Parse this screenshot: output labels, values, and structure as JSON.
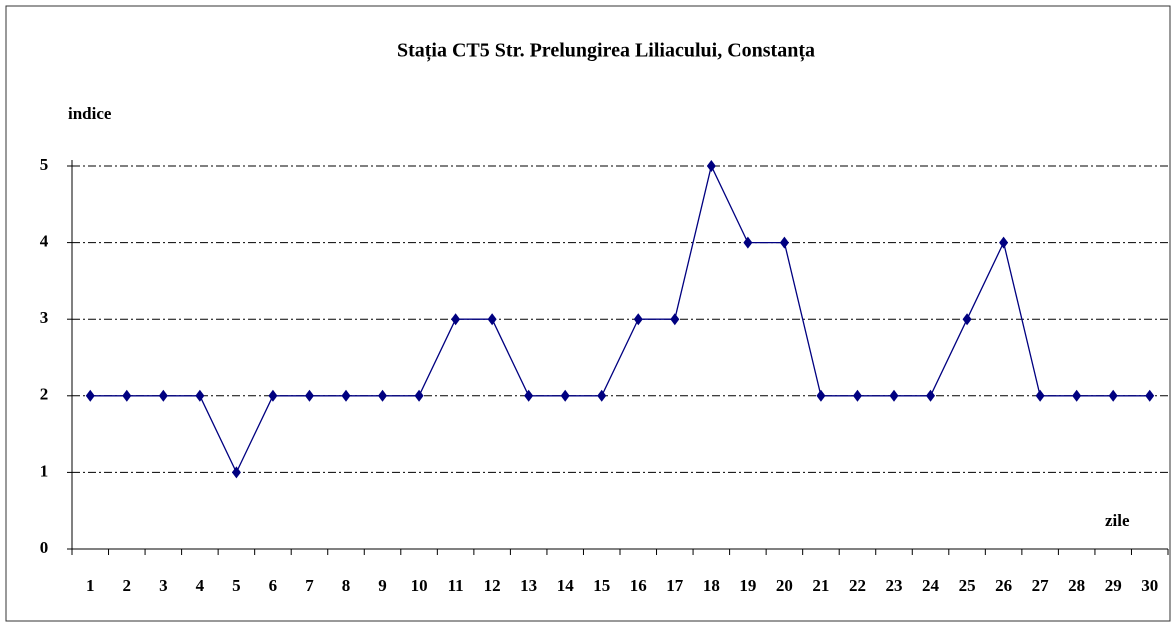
{
  "chart_data": {
    "type": "line",
    "title": "Stația CT5 Str. Prelungirea Liliacului, Constanța",
    "y_label": "indice",
    "x_label": "zile",
    "categories": [
      "1",
      "2",
      "3",
      "4",
      "5",
      "6",
      "7",
      "8",
      "9",
      "10",
      "11",
      "12",
      "13",
      "14",
      "15",
      "16",
      "17",
      "18",
      "19",
      "20",
      "21",
      "22",
      "23",
      "24",
      "25",
      "26",
      "27",
      "28",
      "29",
      "30"
    ],
    "series": [
      {
        "name": "indice",
        "color": "#000080",
        "values": [
          2,
          2,
          2,
          2,
          1,
          2,
          2,
          2,
          2,
          2,
          3,
          3,
          2,
          2,
          2,
          3,
          3,
          5,
          4,
          4,
          2,
          2,
          2,
          2,
          3,
          4,
          2,
          2,
          2,
          2
        ]
      }
    ],
    "ylim": [
      0,
      5
    ],
    "yticks": [
      0,
      1,
      2,
      3,
      4,
      5
    ],
    "grid": true,
    "legend": false
  }
}
